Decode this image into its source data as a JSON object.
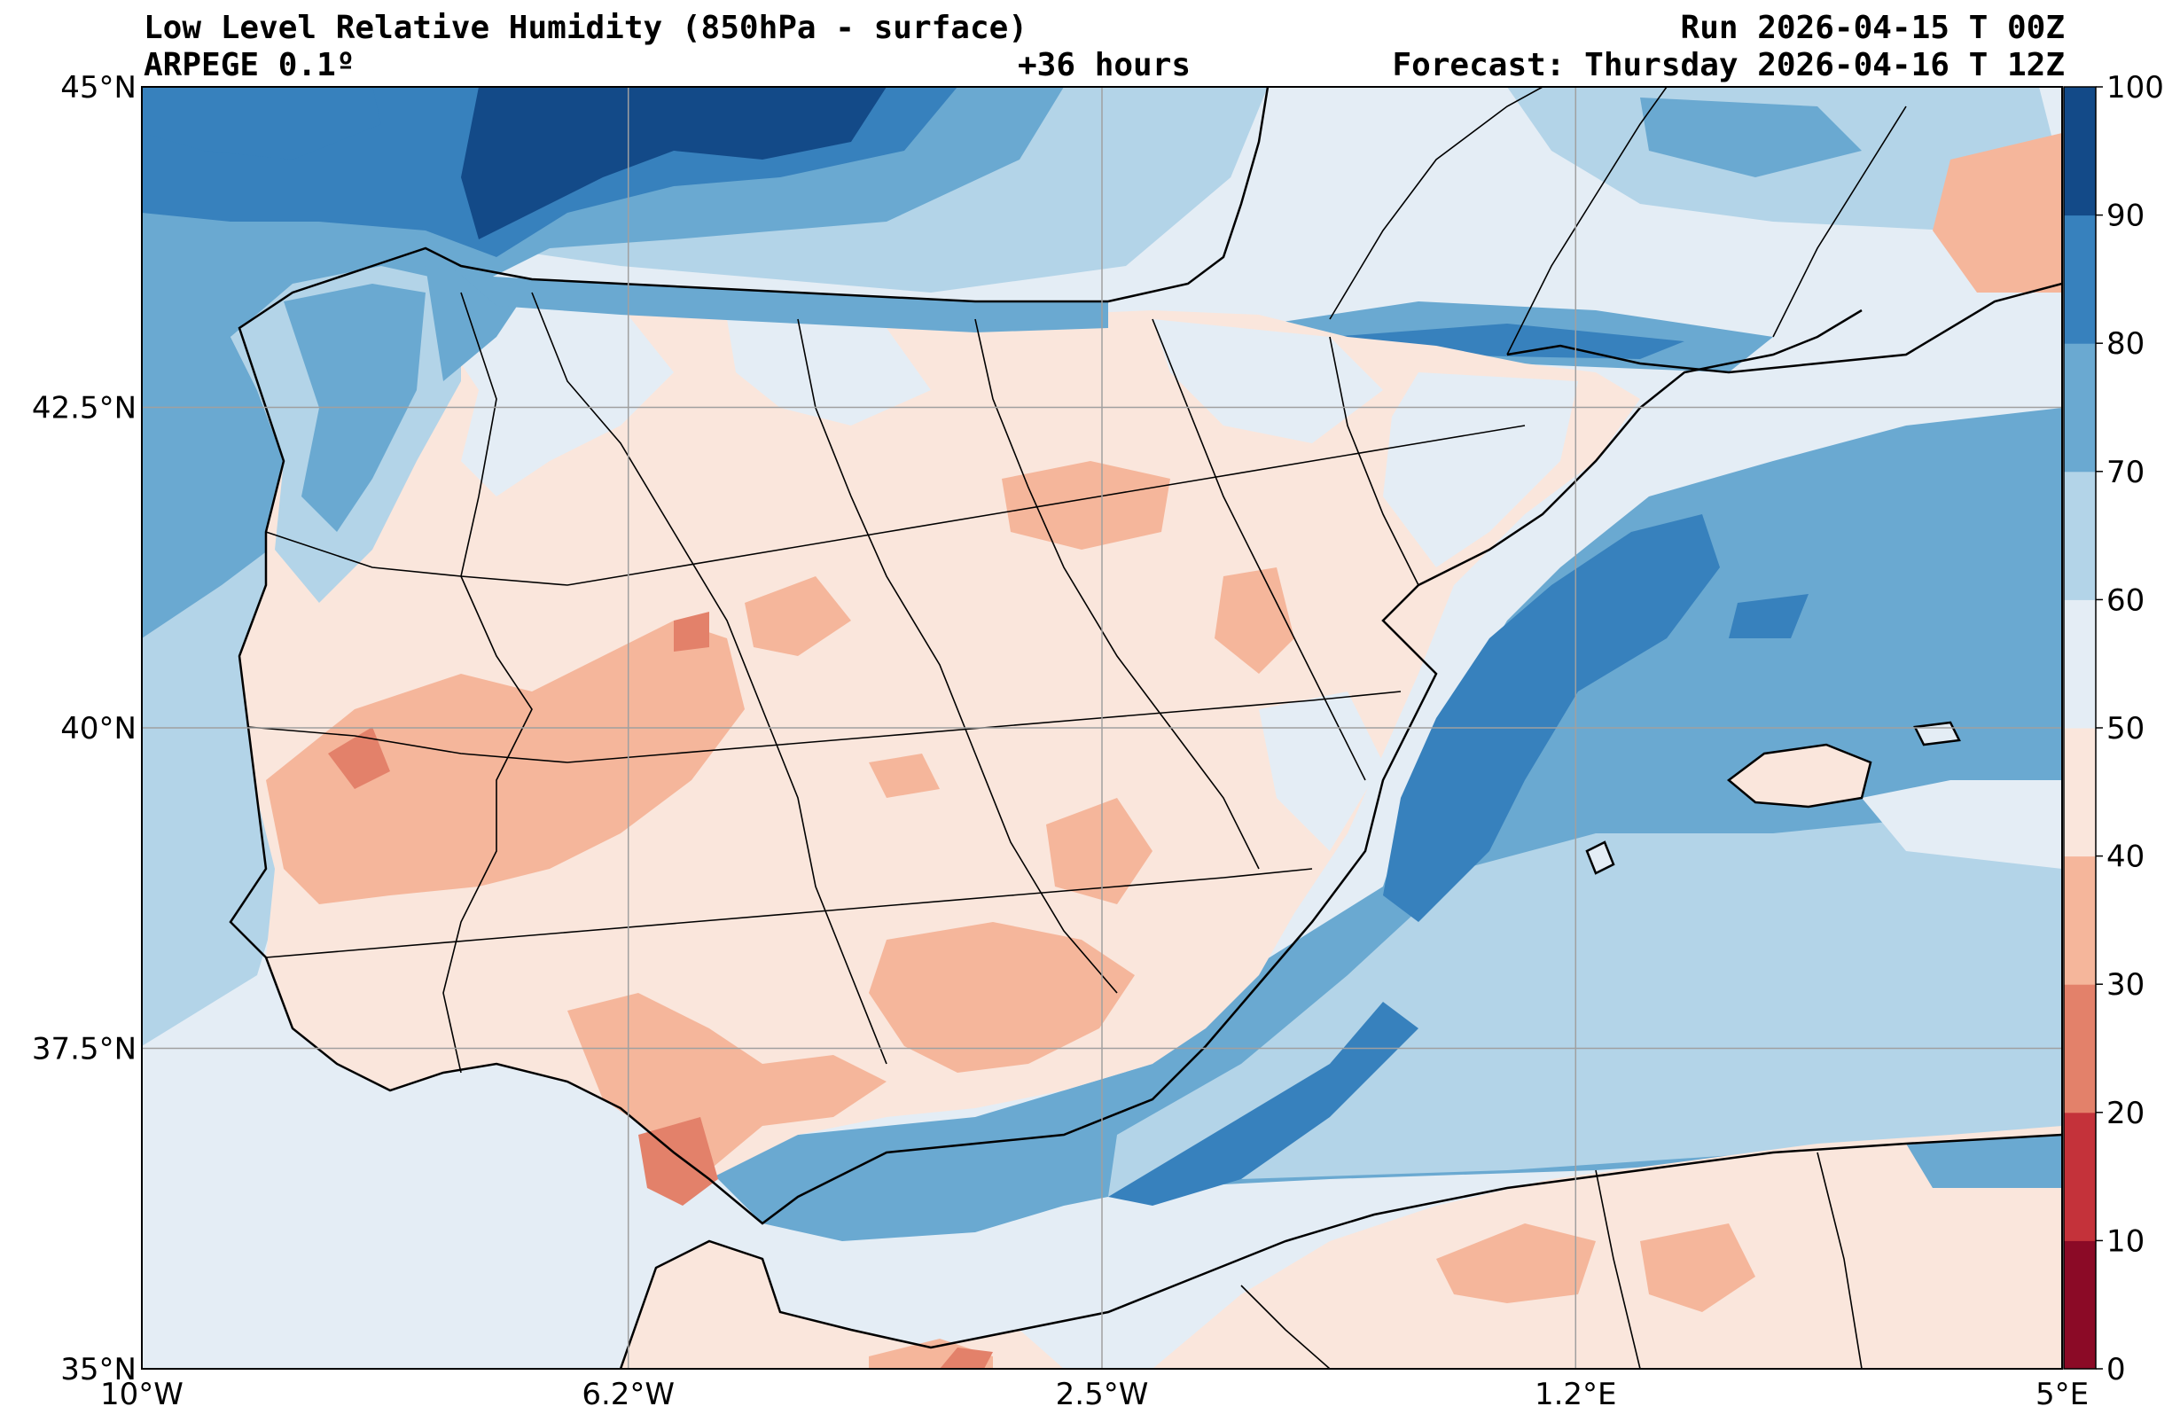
{
  "header": {
    "title": "Low Level Relative Humidity (850hPa - surface)",
    "model": "ARPEGE 0.1º",
    "lead": "+36 hours",
    "run": "Run 2026-04-15 T 00Z",
    "forecast": "Forecast: Thursday 2026-04-16 T 12Z"
  },
  "map": {
    "lon_range": [
      -10,
      5
    ],
    "lat_range": [
      35,
      45
    ],
    "lon_ticks": [
      {
        "value": -10,
        "label": "10°W"
      },
      {
        "value": -6.2,
        "label": "6.2°W"
      },
      {
        "value": -2.5,
        "label": "2.5°W"
      },
      {
        "value": 1.2,
        "label": "1.2°E"
      },
      {
        "value": 5,
        "label": "5°E"
      }
    ],
    "lat_ticks": [
      {
        "value": 35,
        "label": "35°N"
      },
      {
        "value": 37.5,
        "label": "37.5°N"
      },
      {
        "value": 40,
        "label": "40°N"
      },
      {
        "value": 42.5,
        "label": "42.5°N"
      },
      {
        "value": 45,
        "label": "45°N"
      }
    ],
    "grid": true
  },
  "colorbar": {
    "levels": [
      0,
      10,
      20,
      30,
      40,
      50,
      60,
      70,
      80,
      90,
      100
    ],
    "labels": [
      "0",
      "10",
      "20",
      "30",
      "40",
      "50",
      "60",
      "70",
      "80",
      "90",
      "100"
    ],
    "colors": [
      "#8b0a26",
      "#c4323a",
      "#e3816a",
      "#f5b69b",
      "#fae6dc",
      "#e4edf5",
      "#b3d4e8",
      "#6aa9d1",
      "#3781bd",
      "#134a88"
    ]
  }
}
